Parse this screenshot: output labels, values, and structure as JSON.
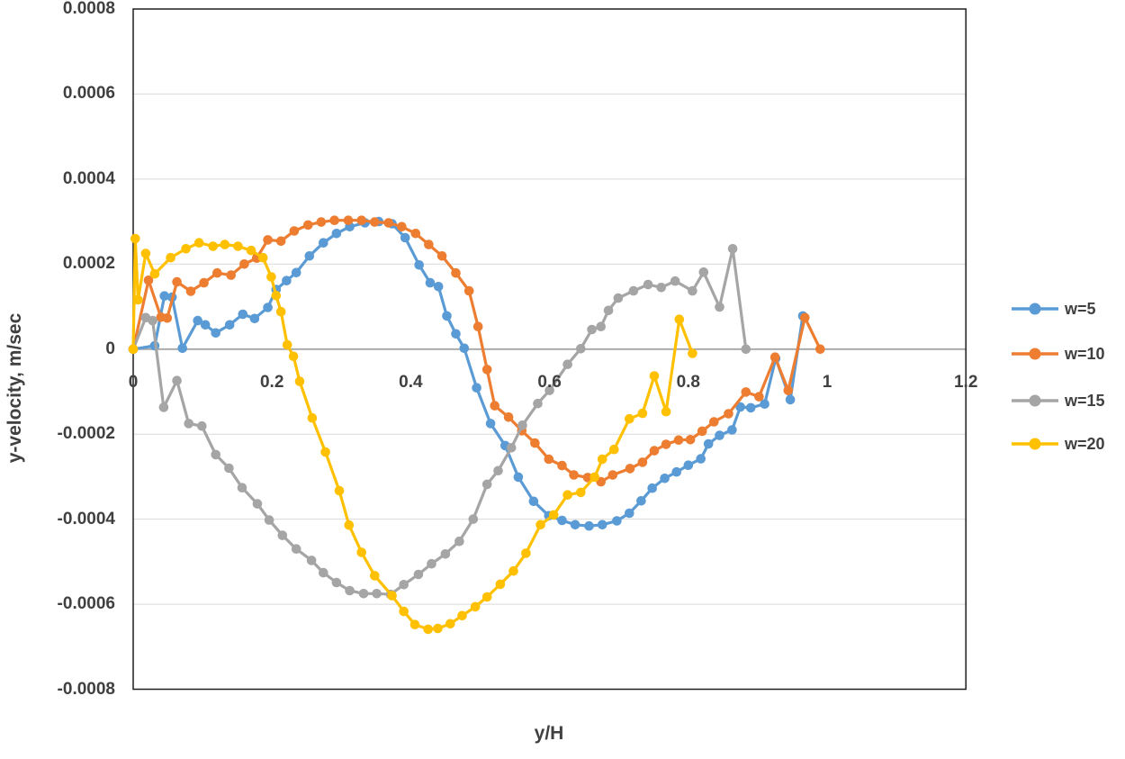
{
  "page": {
    "background": "#FFFFFF"
  },
  "chart_data": {
    "type": "line",
    "title": "",
    "xlabel": "y/H",
    "ylabel": "y-velocity, m/sec",
    "xlim": [
      0,
      1.2
    ],
    "ylim": [
      -0.0008,
      0.0008
    ],
    "grid": "horizontal",
    "gridline_color": "#D9D9D9",
    "axis_line_color": "#A6A6A6",
    "border_color": "#1F1F1F",
    "legend_position": "right",
    "x_ticks": [
      {
        "label": "0",
        "value": 0
      },
      {
        "label": "0.2",
        "value": 0.2
      },
      {
        "label": "0.4",
        "value": 0.4
      },
      {
        "label": "0.6",
        "value": 0.6
      },
      {
        "label": "0.8",
        "value": 0.8
      },
      {
        "label": "1",
        "value": 1
      },
      {
        "label": "1.2",
        "value": 1.2
      }
    ],
    "y_ticks": [
      {
        "label": "0.0008",
        "value": 0.0008
      },
      {
        "label": "0.0006",
        "value": 0.0006
      },
      {
        "label": "0.0004",
        "value": 0.0004
      },
      {
        "label": "0.0002",
        "value": 0.0002
      },
      {
        "label": "0",
        "value": 0
      },
      {
        "label": "-0.0002",
        "value": -0.0002
      },
      {
        "label": "-0.0004",
        "value": -0.0004
      },
      {
        "label": "-0.0006",
        "value": -0.0006
      },
      {
        "label": "-0.0008",
        "value": -0.0008
      }
    ],
    "series": [
      {
        "name": "w=5",
        "color": "#5B9BD5",
        "points": [
          [
            0,
            0
          ],
          [
            0.031,
            8e-06
          ],
          [
            0.045,
            0.000125
          ],
          [
            0.056,
            0.000122
          ],
          [
            0.071,
            2e-06
          ],
          [
            0.093,
            6.7e-05
          ],
          [
            0.104,
            5.7e-05
          ],
          [
            0.119,
            3.8e-05
          ],
          [
            0.139,
            5.7e-05
          ],
          [
            0.158,
            8.2e-05
          ],
          [
            0.175,
            7.2e-05
          ],
          [
            0.194,
            9.8e-05
          ],
          [
            0.206,
            0.00014
          ],
          [
            0.221,
            0.000161
          ],
          [
            0.235,
            0.00018
          ],
          [
            0.254,
            0.000219
          ],
          [
            0.274,
            0.00025
          ],
          [
            0.293,
            0.000272
          ],
          [
            0.312,
            0.000288
          ],
          [
            0.334,
            0.000297
          ],
          [
            0.354,
            0.0003
          ],
          [
            0.373,
            0.000295
          ],
          [
            0.392,
            0.000262
          ],
          [
            0.412,
            0.000198
          ],
          [
            0.428,
            0.000156
          ],
          [
            0.44,
            0.000147
          ],
          [
            0.452,
            7.8e-05
          ],
          [
            0.465,
            3.6e-05
          ],
          [
            0.477,
            2e-06
          ],
          [
            0.495,
            -9.1e-05
          ],
          [
            0.515,
            -0.000175
          ],
          [
            0.536,
            -0.000227
          ],
          [
            0.555,
            -0.000301
          ],
          [
            0.577,
            -0.000358
          ],
          [
            0.599,
            -0.000392
          ],
          [
            0.618,
            -0.000403
          ],
          [
            0.637,
            -0.000413
          ],
          [
            0.657,
            -0.000416
          ],
          [
            0.676,
            -0.000413
          ],
          [
            0.697,
            -0.000404
          ],
          [
            0.715,
            -0.000386
          ],
          [
            0.732,
            -0.000357
          ],
          [
            0.748,
            -0.000327
          ],
          [
            0.766,
            -0.000304
          ],
          [
            0.783,
            -0.000289
          ],
          [
            0.8,
            -0.000273
          ],
          [
            0.818,
            -0.000258
          ],
          [
            0.829,
            -0.000223
          ],
          [
            0.845,
            -0.000203
          ],
          [
            0.863,
            -0.00019
          ],
          [
            0.875,
            -0.000136
          ],
          [
            0.89,
            -0.000138
          ],
          [
            0.91,
            -0.000129
          ],
          [
            0.926,
            -2.2e-05
          ],
          [
            0.947,
            -0.000119
          ],
          [
            0.965,
            7.8e-05
          ]
        ]
      },
      {
        "name": "w=10",
        "color": "#ED7D31",
        "points": [
          [
            0,
            0
          ],
          [
            0.022,
            0.000162
          ],
          [
            0.04,
            7.5e-05
          ],
          [
            0.049,
            7.3e-05
          ],
          [
            0.063,
            0.000158
          ],
          [
            0.083,
            0.000136
          ],
          [
            0.102,
            0.000156
          ],
          [
            0.121,
            0.000179
          ],
          [
            0.141,
            0.000174
          ],
          [
            0.16,
            0.0002
          ],
          [
            0.178,
            0.000214
          ],
          [
            0.194,
            0.000257
          ],
          [
            0.213,
            0.000254
          ],
          [
            0.232,
            0.000278
          ],
          [
            0.252,
            0.000292
          ],
          [
            0.271,
            0.000299
          ],
          [
            0.29,
            0.000303
          ],
          [
            0.31,
            0.000303
          ],
          [
            0.329,
            0.000303
          ],
          [
            0.348,
            0.000299
          ],
          [
            0.368,
            0.000297
          ],
          [
            0.387,
            0.000288
          ],
          [
            0.407,
            0.000272
          ],
          [
            0.426,
            0.000246
          ],
          [
            0.445,
            0.000219
          ],
          [
            0.465,
            0.000179
          ],
          [
            0.484,
            0.000137
          ],
          [
            0.497,
            5.3e-05
          ],
          [
            0.51,
            -4.8e-05
          ],
          [
            0.521,
            -0.000133
          ],
          [
            0.541,
            -0.00016
          ],
          [
            0.56,
            -0.000192
          ],
          [
            0.579,
            -0.000221
          ],
          [
            0.599,
            -0.000259
          ],
          [
            0.618,
            -0.000274
          ],
          [
            0.635,
            -0.000296
          ],
          [
            0.655,
            -0.000302
          ],
          [
            0.674,
            -0.000312
          ],
          [
            0.691,
            -0.000296
          ],
          [
            0.716,
            -0.000281
          ],
          [
            0.734,
            -0.000266
          ],
          [
            0.751,
            -0.000239
          ],
          [
            0.768,
            -0.000224
          ],
          [
            0.786,
            -0.000214
          ],
          [
            0.803,
            -0.000213
          ],
          [
            0.82,
            -0.000193
          ],
          [
            0.837,
            -0.000171
          ],
          [
            0.858,
            -0.000152
          ],
          [
            0.883,
            -0.000101
          ],
          [
            0.902,
            -0.000112
          ],
          [
            0.925,
            -1.9e-05
          ],
          [
            0.944,
            -9.7e-05
          ],
          [
            0.968,
            7.4e-05
          ],
          [
            0.99,
            0
          ]
        ]
      },
      {
        "name": "w=15",
        "color": "#A5A5A5",
        "points": [
          [
            0,
            0
          ],
          [
            0.018,
            7.4e-05
          ],
          [
            0.028,
            6.7e-05
          ],
          [
            0.044,
            -0.000137
          ],
          [
            0.063,
            -7.4e-05
          ],
          [
            0.08,
            -0.000175
          ],
          [
            0.099,
            -0.000181
          ],
          [
            0.119,
            -0.000248
          ],
          [
            0.138,
            -0.00028
          ],
          [
            0.157,
            -0.000326
          ],
          [
            0.179,
            -0.000364
          ],
          [
            0.196,
            -0.000402
          ],
          [
            0.215,
            -0.000438
          ],
          [
            0.235,
            -0.00047
          ],
          [
            0.257,
            -0.000497
          ],
          [
            0.274,
            -0.000526
          ],
          [
            0.293,
            -0.000549
          ],
          [
            0.312,
            -0.000568
          ],
          [
            0.332,
            -0.000575
          ],
          [
            0.351,
            -0.000575
          ],
          [
            0.371,
            -0.000577
          ],
          [
            0.39,
            -0.000554
          ],
          [
            0.411,
            -0.00053
          ],
          [
            0.43,
            -0.000505
          ],
          [
            0.45,
            -0.000482
          ],
          [
            0.47,
            -0.000452
          ],
          [
            0.49,
            -0.0004
          ],
          [
            0.51,
            -0.000318
          ],
          [
            0.526,
            -0.000286
          ],
          [
            0.545,
            -0.000232
          ],
          [
            0.561,
            -0.000179
          ],
          [
            0.583,
            -0.000128
          ],
          [
            0.6,
            -9.7e-05
          ],
          [
            0.626,
            -3.6e-05
          ],
          [
            0.645,
            1e-06
          ],
          [
            0.661,
            4.6e-05
          ],
          [
            0.674,
            5.3e-05
          ],
          [
            0.685,
            9.1e-05
          ],
          [
            0.699,
            0.00012
          ],
          [
            0.721,
            0.000137
          ],
          [
            0.742,
            0.000152
          ],
          [
            0.761,
            0.000145
          ],
          [
            0.781,
            0.00016
          ],
          [
            0.806,
            0.000137
          ],
          [
            0.822,
            0.000181
          ],
          [
            0.845,
            9.9e-05
          ],
          [
            0.864,
            0.000236
          ],
          [
            0.883,
            0
          ]
        ]
      },
      {
        "name": "w=20",
        "color": "#FFC000",
        "points": [
          [
            0,
            0
          ],
          [
            0.003,
            0.00026
          ],
          [
            0.007,
            0.000116
          ],
          [
            0.018,
            0.000225
          ],
          [
            0.031,
            0.000177
          ],
          [
            0.054,
            0.000215
          ],
          [
            0.076,
            0.000236
          ],
          [
            0.095,
            0.00025
          ],
          [
            0.115,
            0.000242
          ],
          [
            0.132,
            0.000246
          ],
          [
            0.151,
            0.000242
          ],
          [
            0.17,
            0.000232
          ],
          [
            0.187,
            0.000215
          ],
          [
            0.199,
            0.00017
          ],
          [
            0.206,
            0.000126
          ],
          [
            0.213,
            8.8e-05
          ],
          [
            0.222,
            1e-05
          ],
          [
            0.231,
            -1.7e-05
          ],
          [
            0.24,
            -7.6e-05
          ],
          [
            0.258,
            -0.000162
          ],
          [
            0.277,
            -0.000242
          ],
          [
            0.297,
            -0.000333
          ],
          [
            0.311,
            -0.000414
          ],
          [
            0.329,
            -0.000478
          ],
          [
            0.348,
            -0.000533
          ],
          [
            0.373,
            -0.00058
          ],
          [
            0.39,
            -0.000617
          ],
          [
            0.406,
            -0.000648
          ],
          [
            0.425,
            -0.000659
          ],
          [
            0.439,
            -0.000657
          ],
          [
            0.457,
            -0.000646
          ],
          [
            0.474,
            -0.000627
          ],
          [
            0.493,
            -0.000606
          ],
          [
            0.51,
            -0.000583
          ],
          [
            0.529,
            -0.000553
          ],
          [
            0.548,
            -0.000522
          ],
          [
            0.566,
            -0.00048
          ],
          [
            0.587,
            -0.000413
          ],
          [
            0.606,
            -0.00039
          ],
          [
            0.626,
            -0.000343
          ],
          [
            0.645,
            -0.000337
          ],
          [
            0.665,
            -0.000301
          ],
          [
            0.676,
            -0.000259
          ],
          [
            0.693,
            -0.000236
          ],
          [
            0.715,
            -0.000164
          ],
          [
            0.734,
            -0.000151
          ],
          [
            0.751,
            -6.3e-05
          ],
          [
            0.768,
            -0.000147
          ],
          [
            0.787,
            7e-05
          ],
          [
            0.806,
            -1e-05
          ]
        ]
      }
    ]
  }
}
